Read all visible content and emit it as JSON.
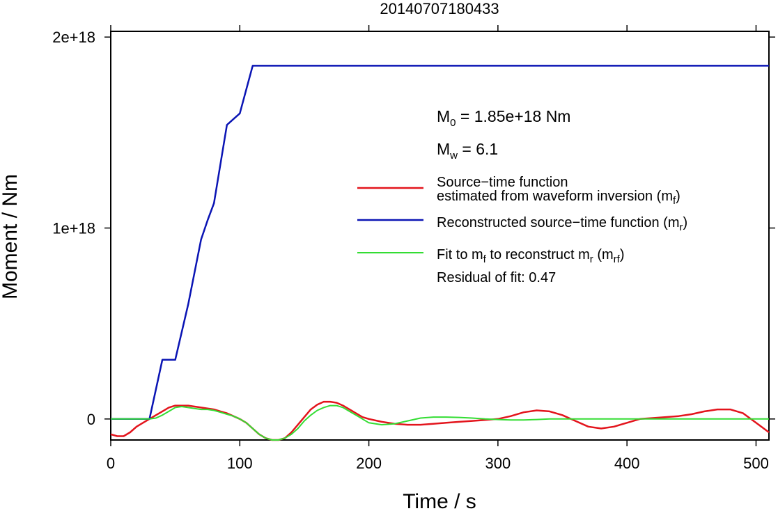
{
  "chart_data": {
    "type": "line",
    "title": "20140707180433",
    "xlabel": "Time / s",
    "ylabel": "Moment / Nm",
    "xlim": [
      0,
      510
    ],
    "ylim": [
      -1.1e+17,
      2.03e+18
    ],
    "x_ticks": [
      0,
      100,
      200,
      300,
      400,
      500
    ],
    "x_tick_labels": [
      "0",
      "100",
      "200",
      "300",
      "400",
      "500"
    ],
    "y_ticks": [
      0,
      1e+18,
      2e+18
    ],
    "y_tick_labels": [
      "0",
      "1e+18",
      "2e+18"
    ],
    "grid": false,
    "legend_position": "right",
    "annotations": {
      "m0": {
        "sym": "M",
        "sub": "0",
        "text": " = 1.85e+18 Nm"
      },
      "mw": {
        "sym": "M",
        "sub": "w",
        "text": " = 6.1"
      },
      "residual": "Residual of fit: 0.47"
    },
    "series": [
      {
        "name": "Source−time function estimated from waveform inversion (m_f)",
        "legend_line1": "Source−time function",
        "legend_line2_pre": "estimated from waveform inversion (m",
        "legend_sub": "f",
        "legend_post": ")",
        "color": "#e3141c",
        "x": [
          0,
          5,
          10,
          15,
          20,
          25,
          30,
          35,
          40,
          45,
          50,
          55,
          60,
          65,
          70,
          75,
          80,
          85,
          90,
          95,
          100,
          105,
          110,
          115,
          120,
          125,
          130,
          135,
          140,
          145,
          150,
          155,
          160,
          165,
          170,
          175,
          180,
          185,
          190,
          195,
          200,
          210,
          220,
          230,
          240,
          250,
          260,
          270,
          280,
          290,
          300,
          310,
          320,
          330,
          340,
          350,
          360,
          370,
          380,
          390,
          400,
          410,
          420,
          430,
          440,
          450,
          460,
          470,
          480,
          490,
          500,
          510
        ],
        "y": [
          -8e+16,
          -9e+16,
          -9e+16,
          -7e+16,
          -4e+16,
          -2e+16,
          0,
          2e+16,
          4e+16,
          6e+16,
          7e+16,
          7e+16,
          7e+16,
          6.5e+16,
          6e+16,
          5.5e+16,
          5e+16,
          4e+16,
          3e+16,
          1.5e+16,
          0,
          -2e+16,
          -5e+16,
          -8e+16,
          -1e+17,
          -1.1e+17,
          -1.1e+17,
          -1e+17,
          -7e+16,
          -3e+16,
          1e+16,
          5e+16,
          7.5e+16,
          9e+16,
          9e+16,
          8.5e+16,
          7e+16,
          5e+16,
          3e+16,
          1e+16,
          0,
          -1.5e+16,
          -2.5e+16,
          -3e+16,
          -3e+16,
          -2.5e+16,
          -2e+16,
          -1.5e+16,
          -1e+16,
          -5000000000000000.0,
          0,
          1.5e+16,
          3.5e+16,
          4.5e+16,
          4e+16,
          2e+16,
          -1e+16,
          -4e+16,
          -5e+16,
          -4e+16,
          -2e+16,
          0,
          5000000000000000.0,
          1e+16,
          1.5e+16,
          2.5e+16,
          4e+16,
          5e+16,
          5e+16,
          3e+16,
          -2e+16,
          -7e+16
        ]
      },
      {
        "name": "Reconstructed source−time function (m_r)",
        "legend_pre": "Reconstructed source−time function (m",
        "legend_sub": "r",
        "legend_post": ")",
        "color": "#0a14b4",
        "x": [
          0,
          30,
          40,
          50,
          60,
          70,
          75,
          80,
          90,
          95,
          100,
          110,
          510
        ],
        "y": [
          0,
          0,
          3.1e+17,
          3.1e+17,
          6e+17,
          9.4e+17,
          1.04e+18,
          1.13e+18,
          1.54e+18,
          1.57e+18,
          1.6e+18,
          1.85e+18,
          1.85e+18
        ]
      },
      {
        "name": "Fit to m_f to reconstruct m_r (m_rf)",
        "legend_a": "Fit to m",
        "legend_sub_a": "f",
        "legend_b": " to reconstruct m",
        "legend_sub_b": "r",
        "legend_c": " (m",
        "legend_sub_c": "rf",
        "legend_d": ")",
        "color": "#33dd33",
        "x": [
          0,
          30,
          35,
          40,
          45,
          50,
          55,
          60,
          65,
          70,
          75,
          80,
          85,
          90,
          95,
          100,
          105,
          110,
          115,
          120,
          125,
          130,
          135,
          140,
          145,
          150,
          155,
          160,
          165,
          170,
          175,
          180,
          185,
          190,
          195,
          200,
          210,
          220,
          230,
          240,
          250,
          260,
          270,
          280,
          290,
          300,
          310,
          320,
          330,
          340,
          350,
          360,
          400,
          450,
          500,
          510
        ],
        "y": [
          0,
          0,
          5000000000000000.0,
          2e+16,
          4e+16,
          6e+16,
          6.5e+16,
          6e+16,
          5.5e+16,
          5e+16,
          5e+16,
          4.5e+16,
          3.5e+16,
          2.5e+16,
          1.5e+16,
          0,
          -2e+16,
          -5e+16,
          -8e+16,
          -1e+17,
          -1.1e+17,
          -1.1e+17,
          -1e+17,
          -8e+16,
          -5e+16,
          -1e+16,
          2e+16,
          4.5e+16,
          6e+16,
          7e+16,
          7e+16,
          6e+16,
          4e+16,
          2e+16,
          0,
          -2e+16,
          -3e+16,
          -2.5e+16,
          -1e+16,
          5000000000000000.0,
          1e+16,
          1e+16,
          8000000000000000.0,
          5000000000000000.0,
          0,
          -3000000000000000.0,
          -5000000000000000.0,
          -5000000000000000.0,
          -3000000000000000.0,
          0,
          0,
          0,
          0,
          0,
          0,
          0
        ]
      }
    ]
  }
}
